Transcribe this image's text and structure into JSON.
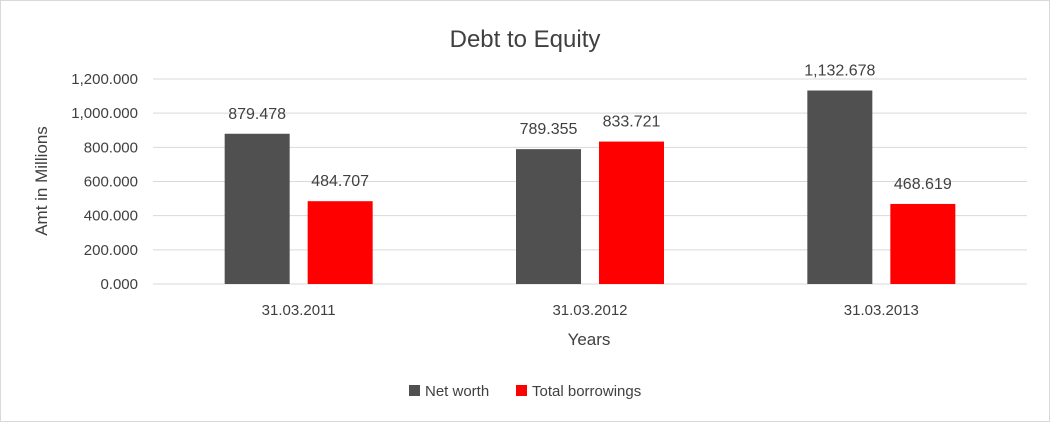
{
  "chart_data": {
    "type": "bar",
    "title": "Debt to Equity",
    "xlabel": "Years",
    "ylabel": "Amt in Millions",
    "categories": [
      "31.03.2011",
      "31.03.2012",
      "31.03.2013"
    ],
    "series": [
      {
        "name": "Net worth",
        "color": "#505050",
        "values": [
          879.478,
          789.355,
          1132.678
        ],
        "labels": [
          "879.478",
          "789.355",
          "1,132.678"
        ]
      },
      {
        "name": "Total borrowings",
        "color": "#ff0000",
        "values": [
          484.707,
          833.721,
          468.619
        ],
        "labels": [
          "484.707",
          "833.721",
          "468.619"
        ]
      }
    ],
    "ylim": [
      0,
      1200
    ],
    "yticks": [
      0,
      200,
      400,
      600,
      800,
      1000,
      1200
    ],
    "ytick_labels": [
      "0.000",
      "200.000",
      "400.000",
      "600.000",
      "800.000",
      "1,000.000",
      "1,200.000"
    ],
    "grid": true,
    "legend_position": "bottom"
  }
}
